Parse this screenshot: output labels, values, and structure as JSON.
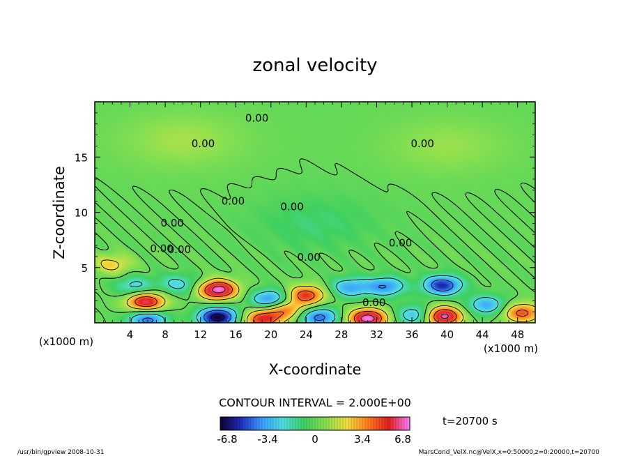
{
  "chart_data": {
    "type": "heatmap",
    "title": "zonal velocity",
    "xlabel": "X-coordinate",
    "ylabel": "Z-coordinate",
    "x_unit_left": "(x1000 m)",
    "x_unit_right": "(x1000 m)",
    "xlim": [
      0,
      50
    ],
    "ylim": [
      0,
      20
    ],
    "x_ticks": [
      4,
      8,
      12,
      16,
      20,
      24,
      28,
      32,
      36,
      40,
      44,
      48
    ],
    "x_tick_labels": [
      "4",
      "8",
      "12",
      "16",
      "20",
      "24",
      "28",
      "32",
      "36",
      "40",
      "44",
      "48"
    ],
    "y_ticks": [
      5,
      10,
      15
    ],
    "y_tick_labels": [
      "5",
      "10",
      "15"
    ],
    "contour_interval_text": "CONTOUR INTERVAL = 2.000E+00",
    "contour_interval": 2.0,
    "contour_labels": [
      "0.00",
      "0.00",
      "0.00",
      "0.00",
      "0.00",
      "0.00",
      "0.00",
      "0.00",
      "0.00",
      "0.00",
      "0.00"
    ],
    "contour_label_value": "0.00",
    "colorbar": {
      "range": [
        -6.8,
        6.8
      ],
      "ticks": [
        "-6.8",
        "-3.4",
        "0",
        "3.4",
        "6.8"
      ],
      "colors": [
        "#100030",
        "#2030c0",
        "#3ca0ff",
        "#50e0e0",
        "#40d060",
        "#88e050",
        "#f0e040",
        "#ff8020",
        "#e02020",
        "#ff80ff"
      ]
    },
    "time_label": "t=20700 s",
    "features": [
      {
        "x": 14.0,
        "z": 3.0,
        "value": 6.8
      },
      {
        "x": 5.8,
        "z": 1.9,
        "value": 6.0
      },
      {
        "x": 24.0,
        "z": 2.5,
        "value": 5.0
      },
      {
        "x": 39.5,
        "z": 0.6,
        "value": 6.8
      },
      {
        "x": 31.0,
        "z": 0.4,
        "value": 6.8
      },
      {
        "x": 19.0,
        "z": 0.3,
        "value": 5.0
      },
      {
        "x": 21.5,
        "z": 1.2,
        "value": 4.0
      },
      {
        "x": 48.5,
        "z": 0.9,
        "value": 4.5
      },
      {
        "x": 39.5,
        "z": 3.4,
        "value": -5.5
      },
      {
        "x": 20.0,
        "z": 2.1,
        "value": -4.5
      },
      {
        "x": 33.0,
        "z": 3.3,
        "value": -4.0
      },
      {
        "x": 29.0,
        "z": 3.2,
        "value": -3.5
      },
      {
        "x": 9.5,
        "z": 3.5,
        "value": -2.5
      },
      {
        "x": 4.5,
        "z": 3.3,
        "value": -2.5
      },
      {
        "x": 14.0,
        "z": 0.5,
        "value": -6.8
      },
      {
        "x": 6.0,
        "z": 0.3,
        "value": -4.5
      },
      {
        "x": 25.5,
        "z": 0.5,
        "value": -4.5
      },
      {
        "x": 36.5,
        "z": 0.7,
        "value": -3.5
      },
      {
        "x": 44.5,
        "z": 1.6,
        "value": -3.5
      },
      {
        "x": 2.0,
        "z": 5.3,
        "value": 2.5
      },
      {
        "x": 10.0,
        "z": 16.5,
        "value": 1.2
      },
      {
        "x": 40.0,
        "z": 16.0,
        "value": 1.0
      },
      {
        "x": 25.0,
        "z": 9.0,
        "value": -1.0
      }
    ]
  },
  "footer": {
    "left": "/usr/bin/gpview   2008-10-31",
    "right": "MarsCond_VelX.nc@VelX,x=0:50000,z=0:20000,t=20700"
  }
}
